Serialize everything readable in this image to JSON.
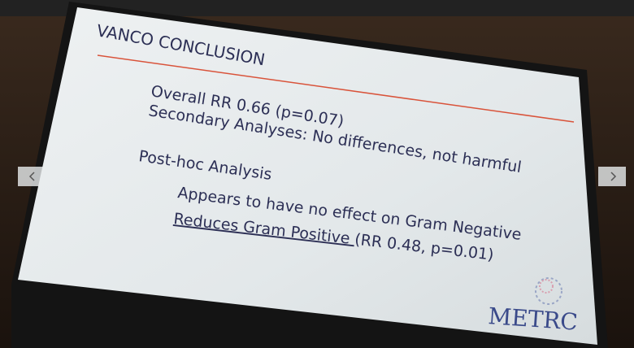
{
  "slide": {
    "title": "VANCO CONCLUSION",
    "lines": [
      "Overall RR 0.66 (p=0.07)",
      "Secondary Analyses: No differences, not harmful",
      "Post-hoc Analysis",
      "Appears to have no effect on Gram Negative"
    ],
    "last_line": {
      "link": "Reduces Gram Positive ",
      "rest": "(RR 0.48, p=0.01)"
    },
    "logo": "METRC"
  }
}
